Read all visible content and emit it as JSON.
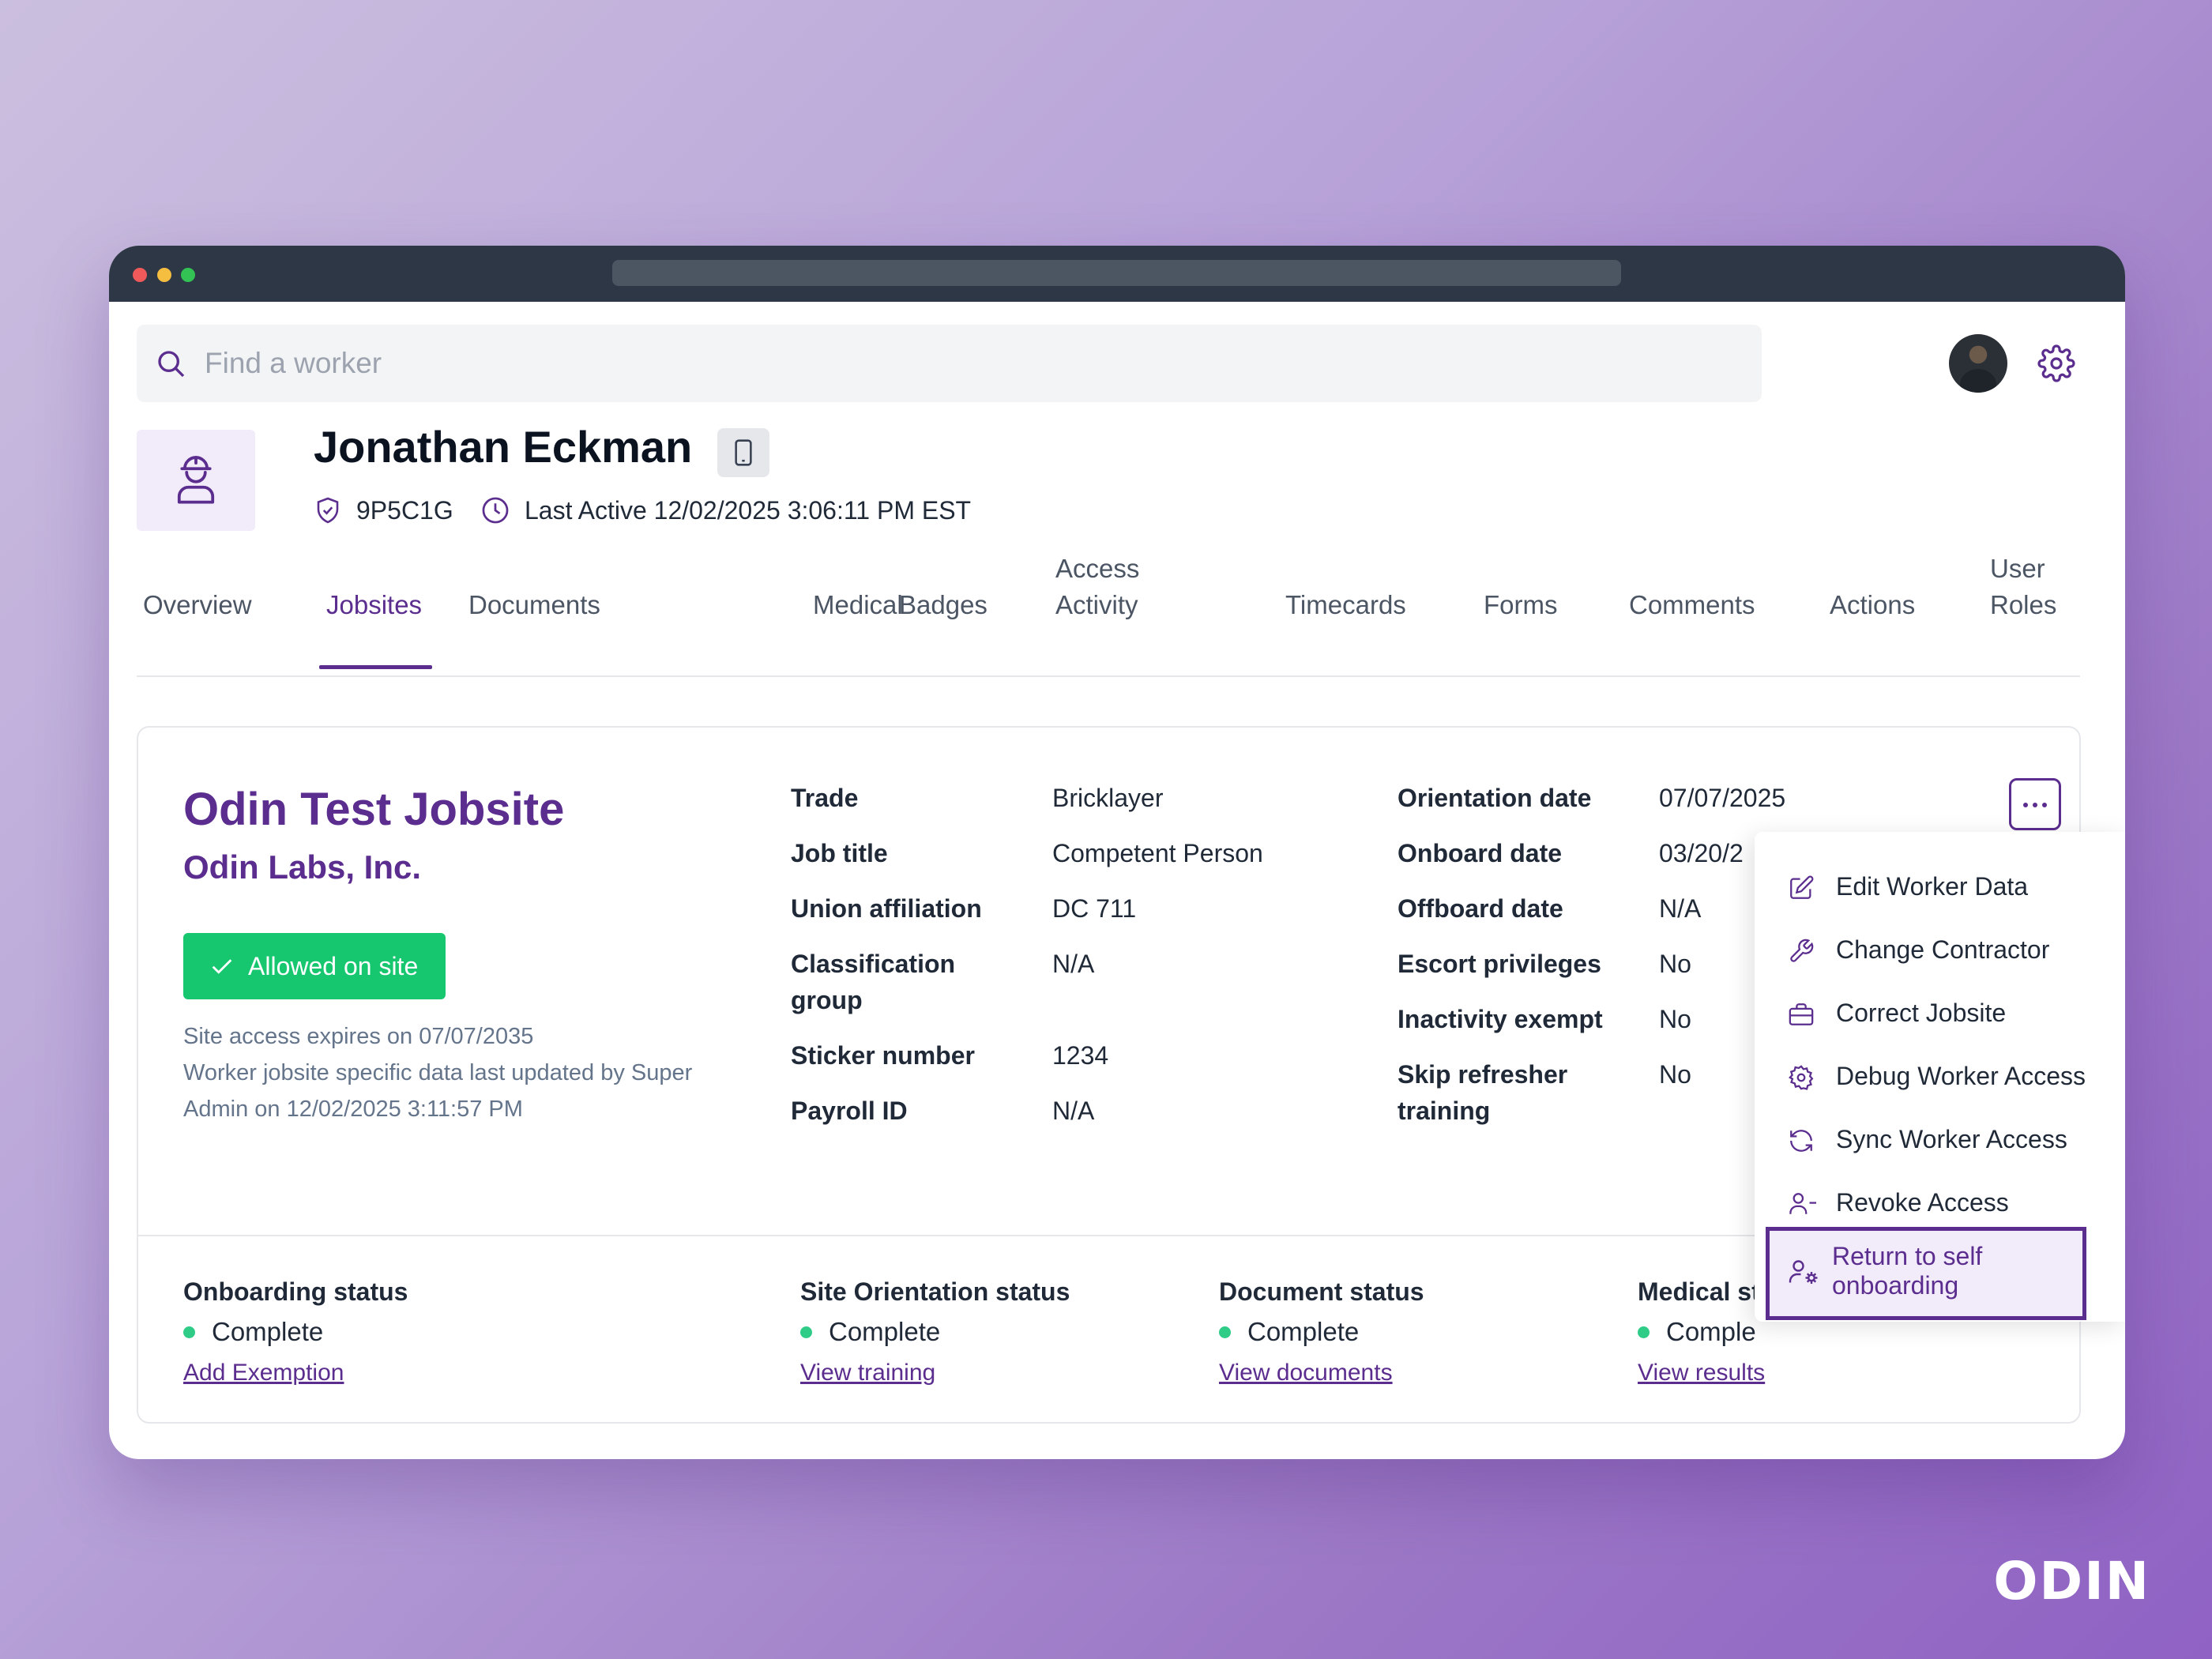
{
  "search": {
    "placeholder": "Find a worker"
  },
  "worker": {
    "name": "Jonathan Eckman",
    "id": "9P5C1G",
    "last_active": "Last Active 12/02/2025 3:06:11 PM EST"
  },
  "tabs": [
    {
      "label": "Overview"
    },
    {
      "label": "Jobsites",
      "selected": true
    },
    {
      "label": "Documents"
    },
    {
      "label": "Medical"
    },
    {
      "label": "Badges"
    },
    {
      "label": "Access Activity"
    },
    {
      "label": "Timecards"
    },
    {
      "label": "Forms"
    },
    {
      "label": "Comments"
    },
    {
      "label": "Actions"
    },
    {
      "label": "User Roles"
    }
  ],
  "jobsite": {
    "name": "Odin Test Jobsite",
    "company": "Odin Labs, Inc.",
    "access_status": "Allowed on site",
    "expires_note": "Site access expires on 07/07/2035",
    "updated_note_1": "Worker jobsite specific data last updated by Super",
    "updated_note_2": "Admin on 12/02/2025 3:11:57 PM",
    "fields_left": [
      {
        "label": "Trade",
        "value": "Bricklayer"
      },
      {
        "label": "Job title",
        "value": "Competent Person"
      },
      {
        "label": "Union affiliation",
        "value": "DC 711"
      },
      {
        "label": "Classification group",
        "value": "N/A"
      },
      {
        "label": "Sticker number",
        "value": "1234"
      },
      {
        "label": "Payroll ID",
        "value": "N/A"
      }
    ],
    "fields_right": [
      {
        "label": "Orientation date",
        "value": "07/07/2025"
      },
      {
        "label": "Onboard date",
        "value": "03/20/2"
      },
      {
        "label": "Offboard date",
        "value": "N/A"
      },
      {
        "label": "Escort privileges",
        "value": "No"
      },
      {
        "label": "Inactivity exempt",
        "value": "No"
      },
      {
        "label": "Skip refresher training",
        "value": "No"
      }
    ],
    "statuses": [
      {
        "label": "Onboarding status",
        "value": "Complete",
        "link": "Add Exemption"
      },
      {
        "label": "Site Orientation status",
        "value": "Complete",
        "link": "View training"
      },
      {
        "label": "Document status",
        "value": "Complete",
        "link": "View documents"
      },
      {
        "label": "Medical st",
        "value": "Comple",
        "link": "View results"
      }
    ]
  },
  "menu": {
    "items": [
      {
        "label": "Edit Worker Data",
        "icon": "edit-icon"
      },
      {
        "label": "Change Contractor",
        "icon": "wrench-icon"
      },
      {
        "label": "Correct Jobsite",
        "icon": "briefcase-icon"
      },
      {
        "label": "Debug Worker Access",
        "icon": "gear-icon"
      },
      {
        "label": "Sync Worker Access",
        "icon": "refresh-icon"
      },
      {
        "label": "Revoke Access",
        "icon": "user-minus-icon"
      },
      {
        "label": "Return to self onboarding",
        "icon": "user-gear-icon",
        "highlighted": true
      }
    ]
  },
  "brand": {
    "logo": "ODIN"
  },
  "colors": {
    "accent": "#5b2d8e",
    "success": "#16c76f",
    "status_dot": "#2ecc87"
  }
}
